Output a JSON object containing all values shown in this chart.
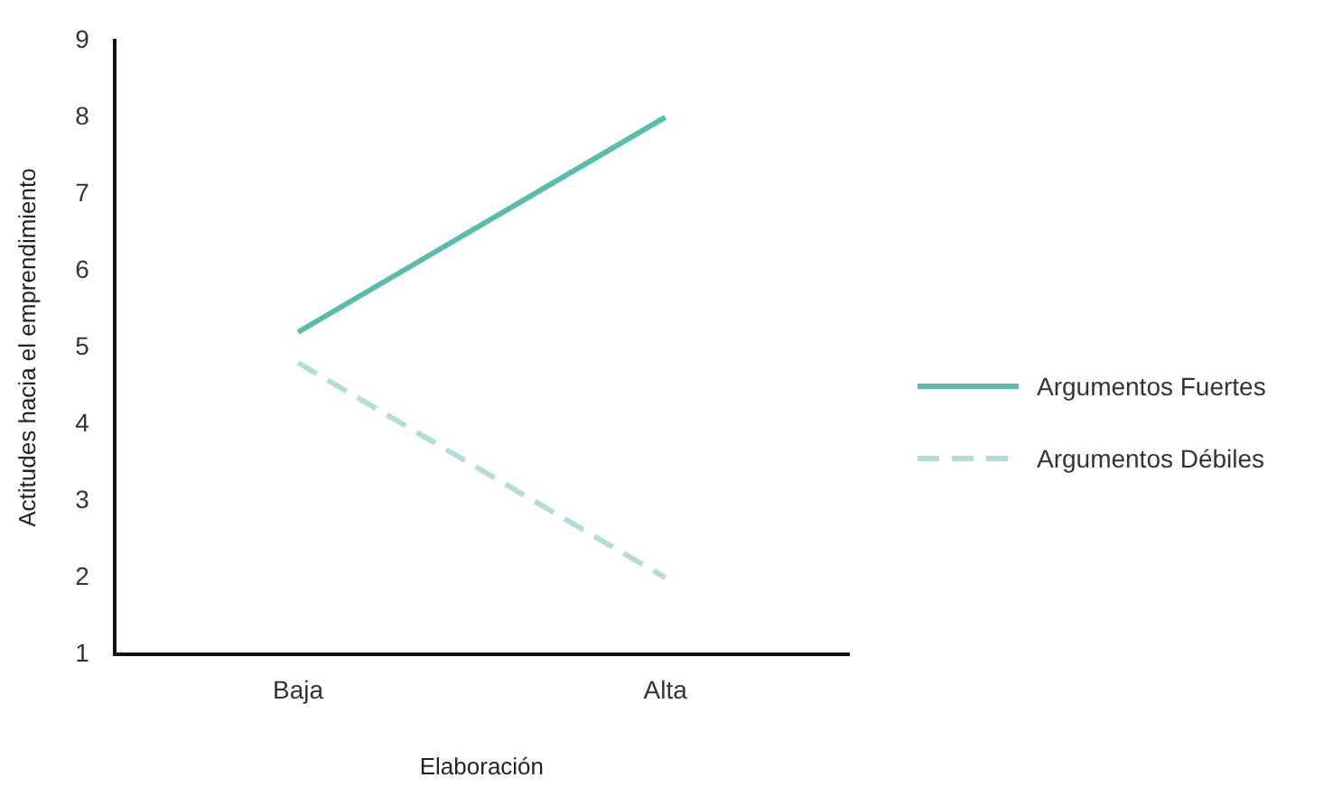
{
  "chart_data": {
    "type": "line",
    "xlabel": "Elaboración",
    "ylabel": "Actitudes hacia el emprendimiento",
    "categories": [
      "Baja",
      "Alta"
    ],
    "series": [
      {
        "name": "Argumentos Fuertes",
        "color": "#5bbcad",
        "values": [
          5.2,
          8.0
        ],
        "line_style": "solid"
      },
      {
        "name": "Argumentos Débiles",
        "color": "#b3ded7",
        "values": [
          4.8,
          2.0
        ],
        "line_style": "dashed"
      }
    ],
    "ylim": [
      1,
      9
    ],
    "yticks": [
      1,
      2,
      3,
      4,
      5,
      6,
      7,
      8,
      9
    ],
    "grid": false,
    "legend": "right",
    "marker": "none"
  }
}
